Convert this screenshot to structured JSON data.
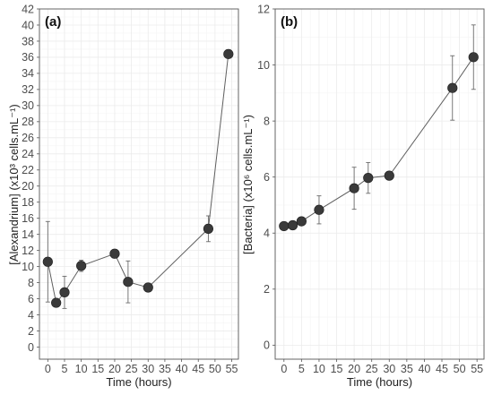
{
  "chart_data": [
    {
      "type": "scatter",
      "panel_label": "(a)",
      "xlabel": "Time (hours)",
      "ylabel": "[Alexandrium] (x10³ cells.mL⁻¹)",
      "xlim": [
        -2.5,
        57
      ],
      "ylim": [
        -1.5,
        42
      ],
      "xticks": [
        0,
        5,
        10,
        15,
        20,
        25,
        30,
        35,
        40,
        45,
        50,
        55
      ],
      "yticks": [
        0,
        2,
        4,
        6,
        8,
        10,
        12,
        14,
        16,
        18,
        20,
        22,
        24,
        26,
        28,
        30,
        32,
        34,
        36,
        38,
        40,
        42
      ],
      "grid": true,
      "connected": true,
      "marker_color": "#3a3a3a",
      "line_color": "#5f5f5f",
      "points": [
        {
          "x": 0,
          "y": 10.6,
          "err": 5.0
        },
        {
          "x": 2.5,
          "y": 5.5,
          "err": 0.0
        },
        {
          "x": 5,
          "y": 6.8,
          "err": 2.0
        },
        {
          "x": 10,
          "y": 10.1,
          "err": 0.7
        },
        {
          "x": 20,
          "y": 11.6,
          "err": 0.0
        },
        {
          "x": 24,
          "y": 8.1,
          "err": 2.6
        },
        {
          "x": 30,
          "y": 7.4,
          "err": 0.0
        },
        {
          "x": 48,
          "y": 14.7,
          "err": 1.6
        },
        {
          "x": 54,
          "y": 36.4,
          "err": 0.5
        }
      ]
    },
    {
      "type": "scatter",
      "panel_label": "(b)",
      "xlabel": "Time (hours)",
      "ylabel": "[Bacteria] (x10⁶ cells.mL⁻¹)",
      "xlim": [
        -2.5,
        57
      ],
      "ylim": [
        -0.5,
        12
      ],
      "xticks": [
        0,
        5,
        10,
        15,
        20,
        25,
        30,
        35,
        40,
        45,
        50,
        55
      ],
      "yticks": [
        0,
        2,
        4,
        6,
        8,
        10,
        12
      ],
      "grid": true,
      "connected": true,
      "marker_color": "#3a3a3a",
      "line_color": "#5f5f5f",
      "points": [
        {
          "x": 0,
          "y": 4.25,
          "err": 0.0
        },
        {
          "x": 2.5,
          "y": 4.28,
          "err": 0.0
        },
        {
          "x": 5,
          "y": 4.42,
          "err": 0.0
        },
        {
          "x": 10,
          "y": 4.83,
          "err": 0.5
        },
        {
          "x": 20,
          "y": 5.6,
          "err": 0.75
        },
        {
          "x": 24,
          "y": 5.97,
          "err": 0.55
        },
        {
          "x": 30,
          "y": 6.05,
          "err": 0.0
        },
        {
          "x": 48,
          "y": 9.18,
          "err": 1.15
        },
        {
          "x": 54,
          "y": 10.28,
          "err": 1.15
        }
      ]
    }
  ]
}
